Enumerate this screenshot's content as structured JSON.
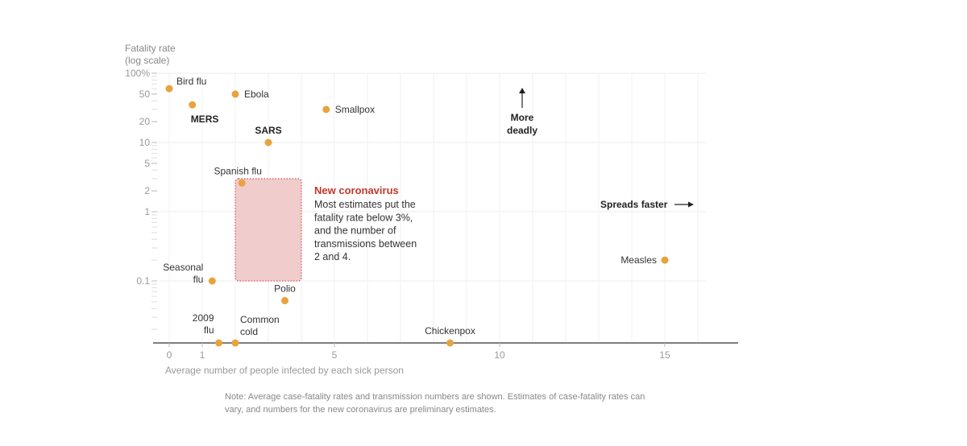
{
  "chart_data": {
    "type": "scatter",
    "title": "",
    "ylabel": [
      "Fatality rate",
      "(log scale)"
    ],
    "xlabel": "Average number of people infected by each sick person",
    "y_scale": "log",
    "ylim": [
      0.01,
      100
    ],
    "xlim": [
      -0.5,
      17.2
    ],
    "y_ticks": [
      {
        "value": 100,
        "label": "100%",
        "major": true
      },
      {
        "value": 50,
        "label": "50",
        "major": false
      },
      {
        "value": 20,
        "label": "20",
        "major": false
      },
      {
        "value": 10,
        "label": "10",
        "major": true
      },
      {
        "value": 5,
        "label": "5",
        "major": false
      },
      {
        "value": 2,
        "label": "2",
        "major": false
      },
      {
        "value": 1,
        "label": "1",
        "major": true
      },
      {
        "value": 0.1,
        "label": "0.1",
        "major": true
      }
    ],
    "x_ticks": [
      {
        "value": 0,
        "label": "0"
      },
      {
        "value": 1,
        "label": "1"
      },
      {
        "value": 5,
        "label": "5"
      },
      {
        "value": 10,
        "label": "10"
      },
      {
        "value": 15,
        "label": "15"
      }
    ],
    "points": [
      {
        "name": "Bird flu",
        "x": 0,
        "y": 60,
        "bold": false,
        "label_pos": "right-up"
      },
      {
        "name": "MERS",
        "x": 0.7,
        "y": 35,
        "bold": true,
        "label_pos": "below"
      },
      {
        "name": "Ebola",
        "x": 2,
        "y": 50,
        "bold": false,
        "label_pos": "right"
      },
      {
        "name": "Smallpox",
        "x": 4.75,
        "y": 30,
        "bold": false,
        "label_pos": "right"
      },
      {
        "name": "SARS",
        "x": 3,
        "y": 10,
        "bold": true,
        "label_pos": "above"
      },
      {
        "name": "Spanish flu",
        "x": 2.2,
        "y": 2.6,
        "bold": false,
        "label_pos": "above"
      },
      {
        "name": "Seasonal flu",
        "lines": [
          "Seasonal",
          "flu"
        ],
        "x": 1.3,
        "y": 0.1,
        "bold": false,
        "label_pos": "left"
      },
      {
        "name": "Polio",
        "x": 3.5,
        "y": 0.052,
        "bold": false,
        "label_pos": "above"
      },
      {
        "name": "Measles",
        "x": 15,
        "y": 0.2,
        "bold": false,
        "label_pos": "left"
      },
      {
        "name": "2009 flu",
        "lines": [
          "2009",
          "flu"
        ],
        "x": 1.5,
        "y": null,
        "bold": false,
        "label_pos": "left-up"
      },
      {
        "name": "Common cold",
        "lines": [
          "Common",
          "cold"
        ],
        "x": 2,
        "y": null,
        "bold": false,
        "label_pos": "right-up"
      },
      {
        "name": "Chickenpox",
        "x": 8.5,
        "y": null,
        "bold": false,
        "label_pos": "above"
      }
    ],
    "highlight_region": {
      "name": "New coronavirus",
      "x": [
        2,
        4
      ],
      "y": [
        0.1,
        3
      ],
      "title": "New coronavirus",
      "text": [
        "Most estimates put the",
        "fatality rate below 3%,",
        "and the number of",
        "transmissions between",
        "2 and 4."
      ]
    },
    "annotations": {
      "more_deadly": [
        "More",
        "deadly"
      ],
      "spreads_faster": "Spreads faster"
    },
    "colors": {
      "point": "#e8a33d",
      "region_fill": "#f0cccc",
      "region_border": "#d9534f",
      "region_title": "#c0392b"
    }
  },
  "note": "Note: Average case-fatality rates and transmission numbers are shown. Estimates of case-fatality rates can vary, and numbers for the new coronavirus are preliminary estimates."
}
